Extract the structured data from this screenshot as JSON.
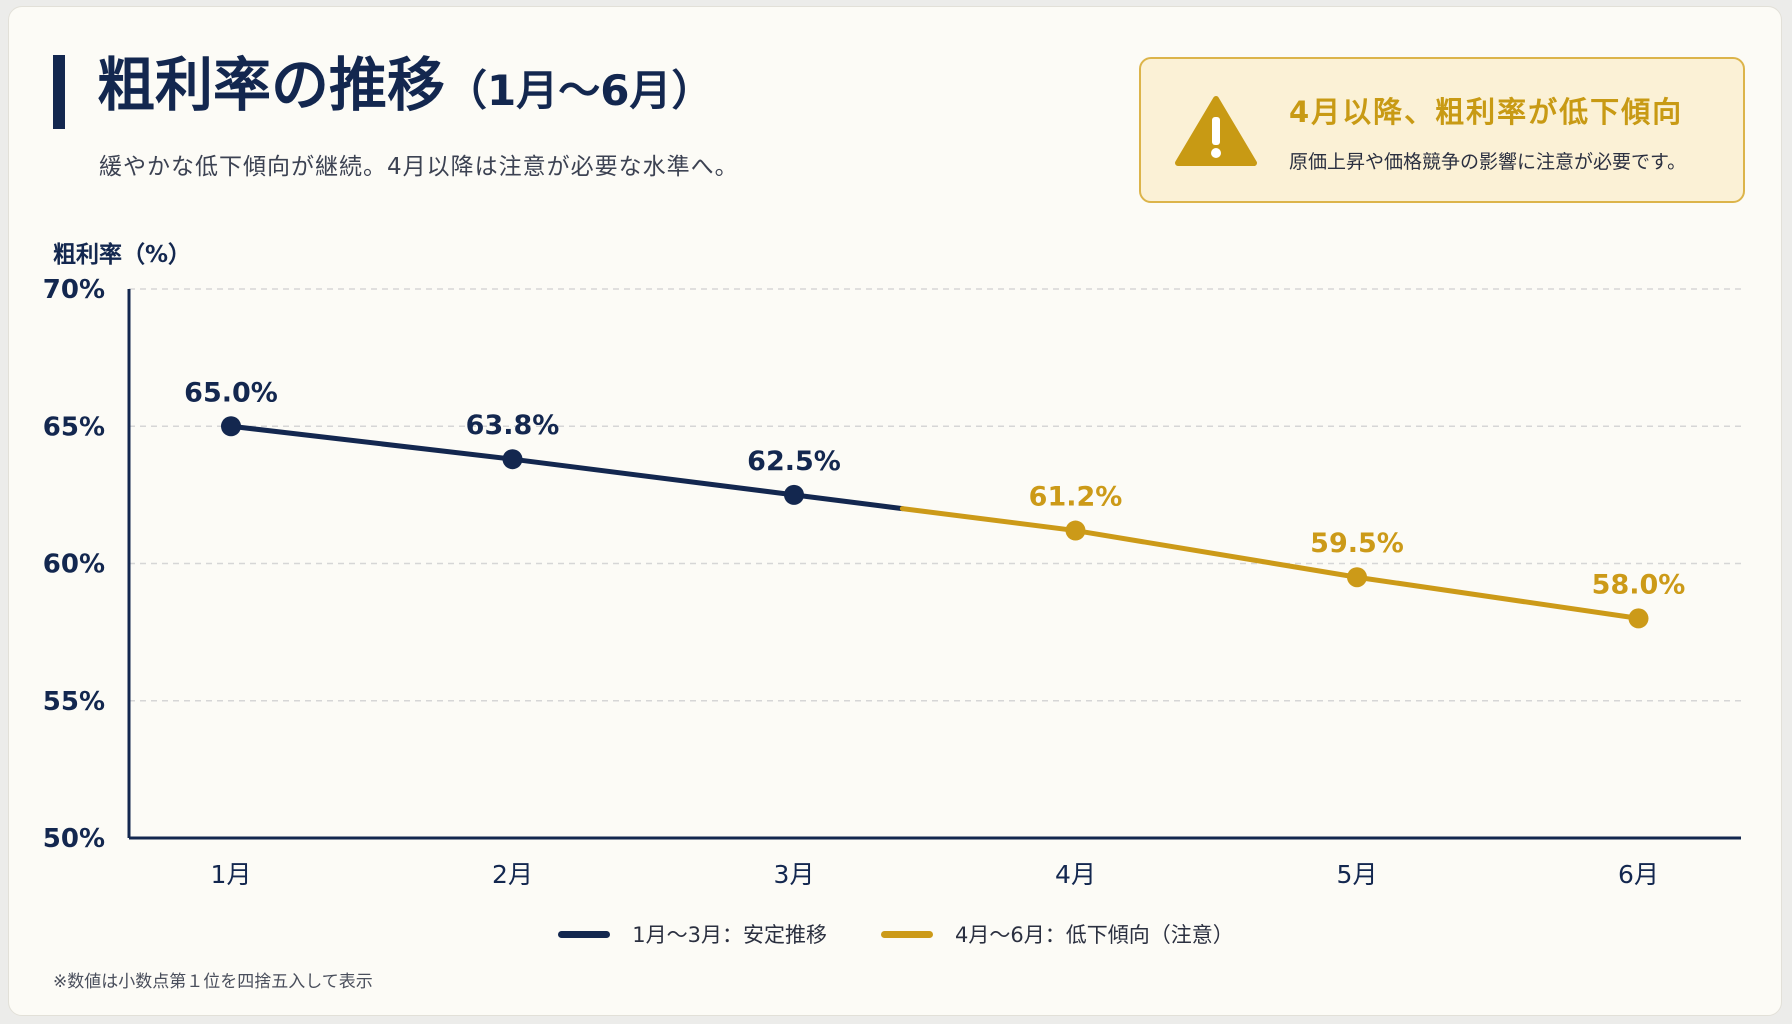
{
  "header": {
    "title": "粗利率の推移",
    "title_range": "（1月〜6月）",
    "subtitle": "緩やかな低下傾向が継続。4月以降は注意が必要な水準へ。"
  },
  "alert": {
    "icon": "warning-triangle-icon",
    "title": "4月以降、粗利率が低下傾向",
    "text": "原価上昇や価格競争の影響に注意が必要です。"
  },
  "footnote": "※数値は小数点第１位を四捨五入して表示",
  "colors": {
    "stable": "#13274f",
    "caution": "#cc9a18",
    "grid": "#d6d6d6"
  },
  "chart_data": {
    "type": "line",
    "ylabel": "粗利率（%）",
    "xlabel": "",
    "categories": [
      "1月",
      "2月",
      "3月",
      "4月",
      "5月",
      "6月"
    ],
    "values": [
      65.0,
      63.8,
      62.5,
      61.2,
      59.5,
      58.0
    ],
    "data_labels": [
      "65.0%",
      "63.8%",
      "62.5%",
      "61.2%",
      "59.5%",
      "58.0%"
    ],
    "ylim": [
      50,
      70
    ],
    "yticks": [
      50,
      55,
      60,
      65,
      70
    ],
    "ytick_labels": [
      "50%",
      "55%",
      "60%",
      "65%",
      "70%"
    ],
    "grid": true,
    "legend_position": "bottom-center",
    "segments": [
      {
        "label": "1月〜3月：安定推移",
        "from": 0,
        "to": 2,
        "color": "#13274f"
      },
      {
        "label": "4月〜6月：低下傾向（注意）",
        "from": 3,
        "to": 5,
        "color": "#cc9a18"
      }
    ]
  }
}
